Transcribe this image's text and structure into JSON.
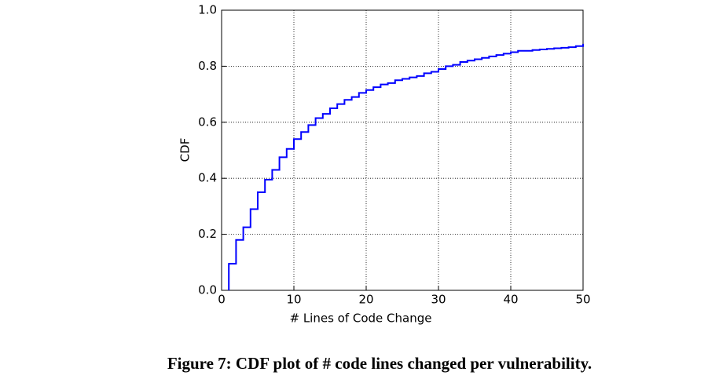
{
  "chart_data": {
    "type": "step",
    "xlabel": "# Lines of Code Change",
    "ylabel": "CDF",
    "caption": "Figure 7: CDF plot of # code lines changed per vulnerability.",
    "color": "#0000ff",
    "grid": true,
    "xlim": [
      0,
      50
    ],
    "ylim": [
      0,
      1
    ],
    "xticks": [
      0,
      10,
      20,
      30,
      40,
      50
    ],
    "yticks": [
      {
        "value": 0,
        "label": "0.0"
      },
      0.2,
      0.4,
      0.6,
      0.8,
      {
        "value": 1,
        "label": "1.0"
      }
    ],
    "x": [
      1,
      2,
      3,
      4,
      5,
      6,
      7,
      8,
      9,
      10,
      11,
      12,
      13,
      14,
      15,
      16,
      17,
      18,
      19,
      20,
      21,
      22,
      23,
      24,
      25,
      26,
      27,
      28,
      29,
      30,
      31,
      32,
      33,
      34,
      35,
      36,
      37,
      38,
      39,
      40,
      41,
      42,
      43,
      44,
      45,
      46,
      47,
      48,
      49,
      50
    ],
    "values": [
      0.095,
      0.18,
      0.225,
      0.29,
      0.35,
      0.395,
      0.43,
      0.475,
      0.505,
      0.54,
      0.565,
      0.59,
      0.615,
      0.63,
      0.65,
      0.665,
      0.68,
      0.69,
      0.705,
      0.715,
      0.725,
      0.735,
      0.74,
      0.75,
      0.755,
      0.76,
      0.765,
      0.775,
      0.78,
      0.79,
      0.8,
      0.805,
      0.815,
      0.82,
      0.825,
      0.83,
      0.835,
      0.84,
      0.845,
      0.85,
      0.855,
      0.855,
      0.858,
      0.86,
      0.862,
      0.864,
      0.866,
      0.868,
      0.872,
      0.88
    ]
  }
}
